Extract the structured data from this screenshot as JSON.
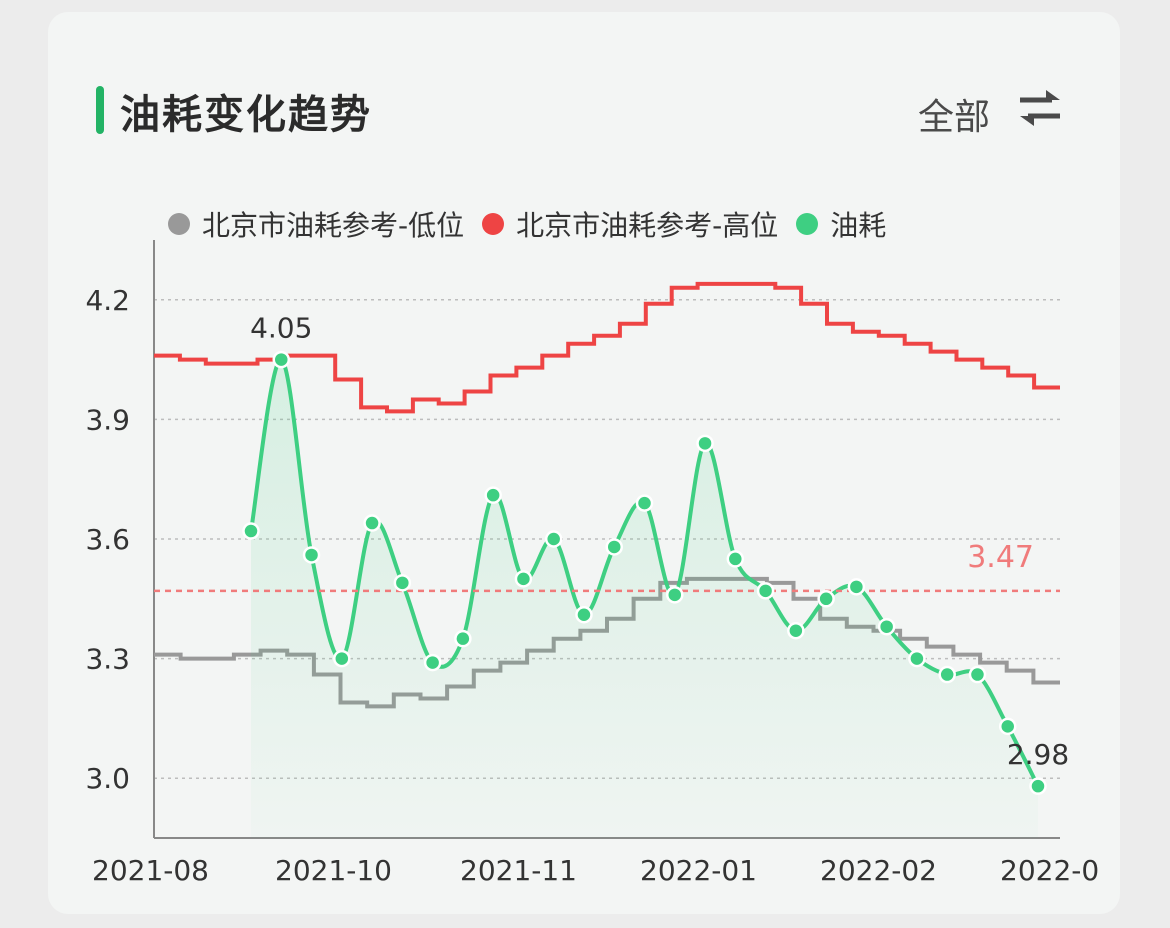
{
  "header": {
    "title": "油耗变化趋势",
    "filter_label": "全部",
    "swap_icon": "swap-arrows-icon",
    "accent_color": "#22b365"
  },
  "chart_data": {
    "type": "line",
    "x_ticks": [
      "2021-08",
      "2021-10",
      "2021-11",
      "2022-01",
      "2022-02",
      "2022-0"
    ],
    "y_ticks": [
      "3.0",
      "3.3",
      "3.6",
      "3.9",
      "4.2"
    ],
    "ylim": [
      2.85,
      4.35
    ],
    "grid": "horizontal-dashed",
    "legend": "top",
    "series": [
      {
        "name": "北京市油耗参考-低位",
        "color": "#999999",
        "style": "step",
        "values": [
          3.31,
          3.3,
          3.3,
          3.31,
          3.32,
          3.31,
          3.26,
          3.19,
          3.18,
          3.21,
          3.2,
          3.23,
          3.27,
          3.29,
          3.32,
          3.35,
          3.37,
          3.4,
          3.45,
          3.49,
          3.5,
          3.5,
          3.5,
          3.49,
          3.45,
          3.4,
          3.38,
          3.37,
          3.35,
          3.33,
          3.31,
          3.29,
          3.27,
          3.24
        ]
      },
      {
        "name": "北京市油耗参考-高位",
        "color": "#ee4444",
        "style": "step",
        "values": [
          4.06,
          4.05,
          4.04,
          4.04,
          4.05,
          4.06,
          4.06,
          4.0,
          3.93,
          3.92,
          3.95,
          3.94,
          3.97,
          4.01,
          4.03,
          4.06,
          4.09,
          4.11,
          4.14,
          4.19,
          4.23,
          4.24,
          4.24,
          4.24,
          4.23,
          4.19,
          4.14,
          4.12,
          4.11,
          4.09,
          4.07,
          4.05,
          4.03,
          4.01,
          3.98
        ]
      },
      {
        "name": "油耗",
        "color": "#3ecf82",
        "style": "smooth",
        "values": [
          3.62,
          4.05,
          3.56,
          3.3,
          3.64,
          3.49,
          3.29,
          3.35,
          3.71,
          3.5,
          3.6,
          3.41,
          3.58,
          3.69,
          3.46,
          3.84,
          3.55,
          3.47,
          3.37,
          3.45,
          3.48,
          3.38,
          3.3,
          3.26,
          3.26,
          3.13,
          2.98
        ]
      }
    ],
    "average": {
      "value": 3.47,
      "label": "3.47",
      "color": "#f07b7b"
    },
    "max_label": "4.05",
    "min_label": "2.98"
  }
}
